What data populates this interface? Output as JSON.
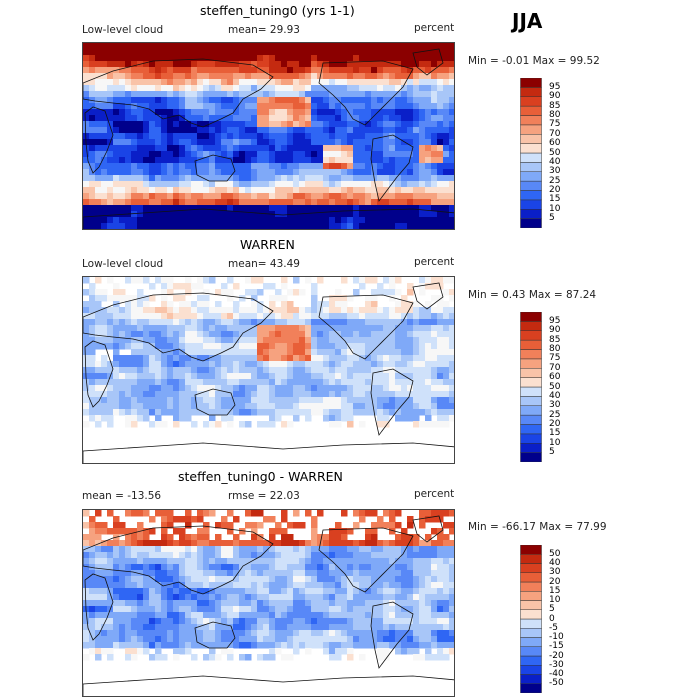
{
  "season": "JJA",
  "colors": {
    "ramp": [
      "#00008b",
      "#0a1fc8",
      "#1a44e6",
      "#2f66f4",
      "#5888f7",
      "#7fa9f8",
      "#a8c6f8",
      "#cfe1fa",
      "#f7f7f7",
      "#fbe0d0",
      "#f9c3a8",
      "#f6a27f",
      "#f1805a",
      "#e85f38",
      "#d94020",
      "#c42a10",
      "#8b0000"
    ]
  },
  "panels": [
    {
      "title": "steffen_tuning0 (yrs 1-1)",
      "left_label": "Low-level cloud",
      "center_label": "mean=  29.93",
      "right_label": "percent",
      "minmax": "Min =  -0.01 Max =  99.52",
      "kind": "model"
    },
    {
      "title": "WARREN",
      "left_label": "Low-level cloud",
      "center_label": "mean=  43.49",
      "right_label": "percent",
      "minmax": "Min =   0.43 Max =  87.24",
      "kind": "obs"
    },
    {
      "title": "steffen_tuning0 - WARREN",
      "left_label": "mean = -13.56",
      "center_label": "rmse =  22.03",
      "right_label": "percent",
      "minmax": "Min = -66.17 Max =  77.99",
      "kind": "diff"
    }
  ],
  "chart_data": [
    {
      "type": "heatmap",
      "title": "steffen_tuning0 (yrs 1-1)",
      "field": "Low-level cloud",
      "units": "percent",
      "mean": 29.93,
      "min": -0.01,
      "max": 99.52,
      "colorbar_levels": [
        5,
        10,
        15,
        20,
        25,
        30,
        40,
        50,
        60,
        70,
        75,
        80,
        85,
        90,
        95
      ]
    },
    {
      "type": "heatmap",
      "title": "WARREN",
      "field": "Low-level cloud",
      "units": "percent",
      "mean": 43.49,
      "min": 0.43,
      "max": 87.24,
      "colorbar_levels": [
        5,
        10,
        15,
        20,
        25,
        30,
        40,
        50,
        60,
        70,
        75,
        80,
        85,
        90,
        95
      ]
    },
    {
      "type": "heatmap",
      "title": "steffen_tuning0 - WARREN",
      "units": "percent",
      "mean": -13.56,
      "rmse": 22.03,
      "min": -66.17,
      "max": 77.99,
      "colorbar_levels": [
        -50,
        -40,
        -30,
        -20,
        -15,
        -10,
        -5,
        0,
        5,
        10,
        15,
        20,
        30,
        40,
        50
      ]
    }
  ]
}
